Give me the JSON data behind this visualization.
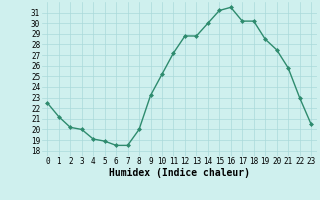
{
  "x": [
    0,
    1,
    2,
    3,
    4,
    5,
    6,
    7,
    8,
    9,
    10,
    11,
    12,
    13,
    14,
    15,
    16,
    17,
    18,
    19,
    20,
    21,
    22,
    23
  ],
  "y": [
    22.5,
    21.2,
    20.2,
    20.0,
    19.1,
    18.9,
    18.5,
    18.5,
    20.0,
    23.2,
    25.2,
    27.2,
    28.8,
    28.8,
    30.0,
    31.2,
    31.5,
    30.2,
    30.2,
    28.5,
    27.5,
    25.8,
    23.0,
    20.5
  ],
  "line_color": "#2e8b6e",
  "marker": "D",
  "marker_size": 2.0,
  "bg_color": "#cff0ee",
  "grid_color": "#aadada",
  "xlabel": "Humidex (Indice chaleur)",
  "xlim": [
    -0.5,
    23.5
  ],
  "ylim": [
    17.5,
    32.0
  ],
  "yticks": [
    18,
    19,
    20,
    21,
    22,
    23,
    24,
    25,
    26,
    27,
    28,
    29,
    30,
    31
  ],
  "xticks": [
    0,
    1,
    2,
    3,
    4,
    5,
    6,
    7,
    8,
    9,
    10,
    11,
    12,
    13,
    14,
    15,
    16,
    17,
    18,
    19,
    20,
    21,
    22,
    23
  ],
  "tick_fontsize": 5.5,
  "xlabel_fontsize": 7.0,
  "line_width": 1.0
}
